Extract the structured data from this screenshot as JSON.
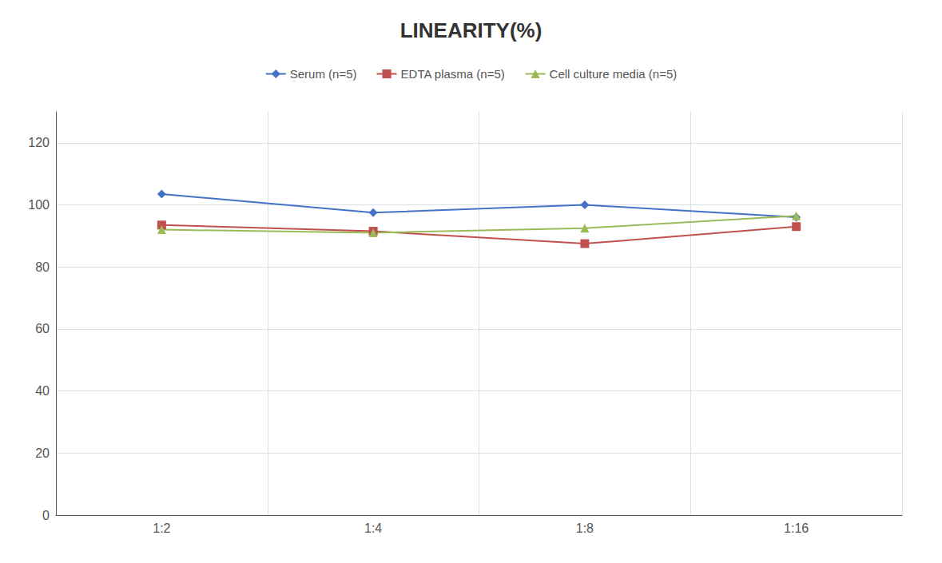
{
  "chart_data": {
    "type": "line",
    "title": "LINEARITY(%)",
    "categories": [
      "1:2",
      "1:4",
      "1:8",
      "1:16"
    ],
    "series": [
      {
        "name": "Serum (n=5)",
        "color": "#4472C4",
        "marker": "diamond",
        "values": [
          103.5,
          97.5,
          100.0,
          96.0
        ]
      },
      {
        "name": "EDTA plasma (n=5)",
        "color": "#C0504D",
        "marker": "square",
        "values": [
          93.5,
          91.5,
          87.5,
          93.0
        ]
      },
      {
        "name": "Cell culture media (n=5)",
        "color": "#9BBB59",
        "marker": "triangle",
        "values": [
          92.0,
          91.0,
          92.5,
          96.5
        ]
      }
    ],
    "ylim": [
      0,
      130
    ],
    "yticks": [
      0,
      20,
      40,
      60,
      80,
      100,
      120
    ],
    "grid": true,
    "legend": "top"
  }
}
